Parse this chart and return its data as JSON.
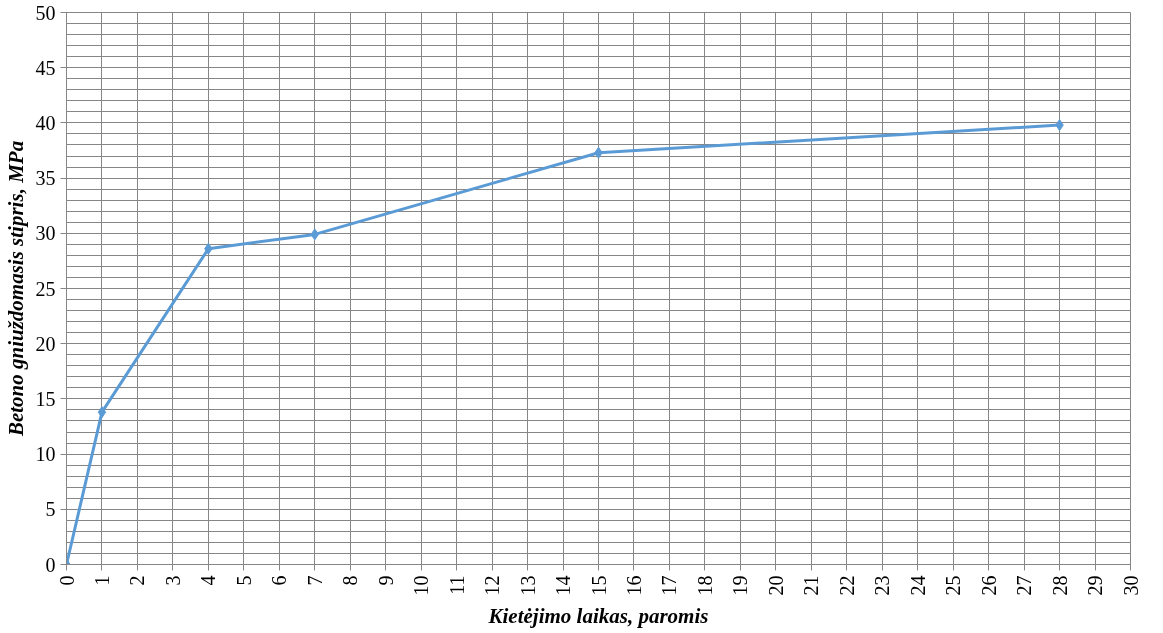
{
  "chart_data": {
    "type": "line",
    "xlabel": "Kietėjimo laikas, paromis",
    "ylabel": "Betono gniuždomasis stipris, MPa",
    "x": [
      0,
      1,
      4,
      7,
      15,
      28
    ],
    "series": [
      {
        "color": "#5b9bd5",
        "values": [
          0,
          13.8,
          28.6,
          29.9,
          37.3,
          39.8
        ]
      }
    ],
    "xlim": [
      0,
      30
    ],
    "xticks": [
      0,
      1,
      2,
      3,
      4,
      5,
      6,
      7,
      8,
      9,
      10,
      11,
      12,
      13,
      14,
      15,
      16,
      17,
      18,
      19,
      20,
      21,
      22,
      23,
      24,
      25,
      26,
      27,
      28,
      29,
      30
    ],
    "ylim": [
      0,
      50
    ],
    "yticks": [
      0,
      5,
      10,
      15,
      20,
      25,
      30,
      35,
      40,
      45,
      50
    ],
    "grid": true,
    "marker": "diamond",
    "line_style": "solid"
  }
}
